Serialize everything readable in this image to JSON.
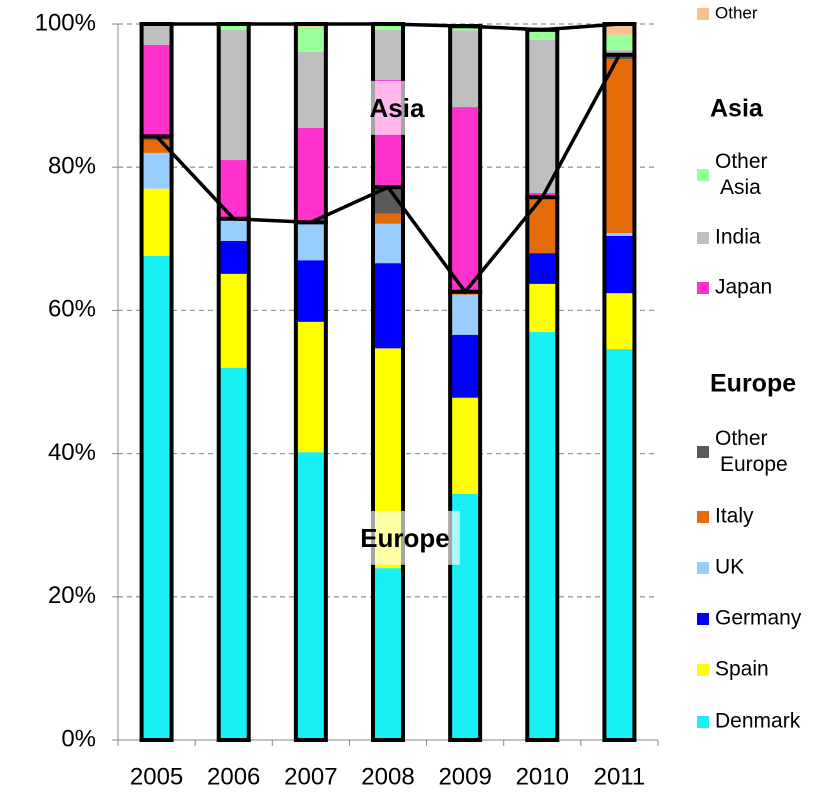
{
  "chart_data": {
    "type": "stacked_bar",
    "categories": [
      "2005",
      "2006",
      "2007",
      "2008",
      "2009",
      "2010",
      "2011"
    ],
    "series": [
      {
        "name": "Denmark",
        "color": "#19f0f5",
        "values": [
          67.6,
          52,
          40.2,
          24,
          34.4,
          57,
          54.6
        ]
      },
      {
        "name": "Spain",
        "color": "#ffff00",
        "values": [
          9.4,
          13.1,
          18.2,
          30.7,
          13.4,
          6.7,
          7.8
        ]
      },
      {
        "name": "Germany",
        "color": "#0000ff",
        "values": [
          0,
          4.6,
          8.6,
          11.9,
          8.8,
          4.3,
          8
        ]
      },
      {
        "name": "UK",
        "color": "#99ccff",
        "values": [
          5,
          3.1,
          5.3,
          5.5,
          5.6,
          0,
          0.4
        ]
      },
      {
        "name": "Italy",
        "color": "#e36c09",
        "values": [
          1.8,
          0,
          0,
          1.4,
          0.4,
          7.8,
          24.3
        ]
      },
      {
        "name": "Other Europe",
        "color": "#595959",
        "values": [
          0.5,
          0,
          0,
          3.7,
          0,
          0,
          0.6
        ]
      },
      {
        "name": "Japan",
        "color": "#ff33cc",
        "values": [
          12.8,
          8.2,
          13.2,
          15,
          25.8,
          0.6,
          0
        ]
      },
      {
        "name": "India",
        "color": "#bfbfbf",
        "values": [
          2.9,
          18.2,
          10.6,
          7,
          10.7,
          21.4,
          0.7
        ]
      },
      {
        "name": "Other Asia",
        "color": "#99ff99",
        "values": [
          0,
          0.8,
          3.5,
          0.8,
          0.6,
          1.1,
          2.1
        ]
      },
      {
        "name": "Other",
        "color": "#fac090",
        "values": [
          0,
          0,
          0.4,
          0,
          0,
          0.3,
          1.5
        ]
      }
    ],
    "europe_series": 6,
    "legend_groups": [
      "Asia",
      "Europe"
    ],
    "annotations": [
      "Asia",
      "Europe"
    ],
    "ylim": [
      0,
      100
    ],
    "yticks": [
      {
        "value": 0,
        "label": "0%"
      },
      {
        "value": 20,
        "label": "20%"
      },
      {
        "value": 40,
        "label": "40%"
      },
      {
        "value": 60,
        "label": "60%"
      },
      {
        "value": 80,
        "label": "80%"
      },
      {
        "value": 100,
        "label": "100%"
      }
    ],
    "grid": true
  }
}
